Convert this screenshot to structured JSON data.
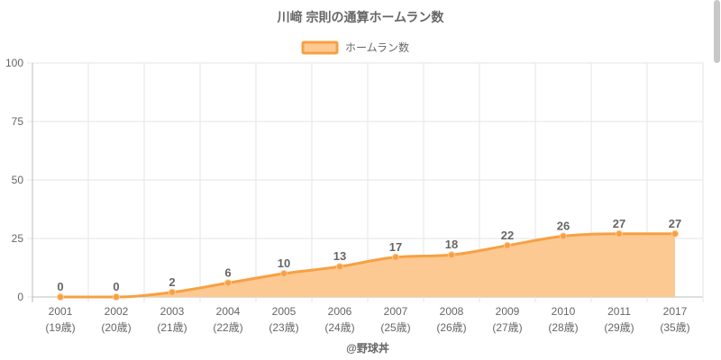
{
  "chart_data": {
    "type": "area",
    "title": "川﨑 宗則の通算ホームラン数",
    "legend": {
      "label": "ホームラン数",
      "position": "top-center"
    },
    "x_years": [
      "2001",
      "2002",
      "2003",
      "2004",
      "2005",
      "2006",
      "2007",
      "2008",
      "2009",
      "2010",
      "2011",
      "2017"
    ],
    "x_ages": [
      "(19歳)",
      "(20歳)",
      "(21歳)",
      "(22歳)",
      "(23歳)",
      "(24歳)",
      "(25歳)",
      "(26歳)",
      "(27歳)",
      "(28歳)",
      "(29歳)",
      "(35歳)"
    ],
    "series": [
      {
        "name": "ホームラン数",
        "values": [
          0,
          0,
          2,
          6,
          10,
          13,
          17,
          18,
          22,
          26,
          27,
          27
        ]
      }
    ],
    "ylim": [
      0,
      100
    ],
    "yticks": [
      0,
      25,
      50,
      75,
      100
    ],
    "grid": true,
    "line_color": "#f7a043",
    "fill_color": "#fdc992",
    "footer": "@野球丼"
  }
}
